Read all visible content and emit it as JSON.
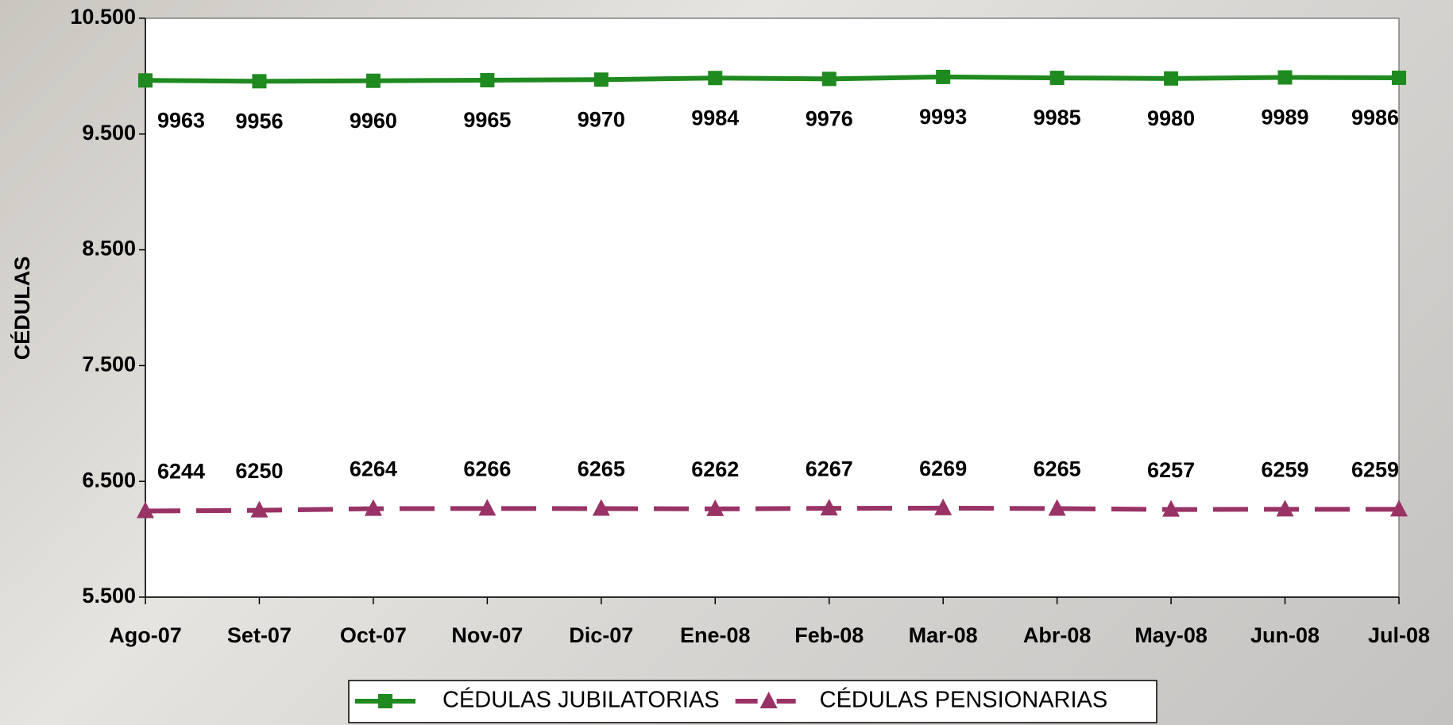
{
  "chart_data": {
    "type": "line",
    "ylabel": "CÉDULAS",
    "categories": [
      "Ago-07",
      "Set-07",
      "Oct-07",
      "Nov-07",
      "Dic-07",
      "Ene-08",
      "Feb-08",
      "Mar-08",
      "Abr-08",
      "May-08",
      "Jun-08",
      "Jul-08"
    ],
    "series": [
      {
        "name": "CÉDULAS JUBILATORIAS",
        "color": "#1f8a1f",
        "line_style": "solid",
        "marker": "square",
        "label_position": "below",
        "values": [
          9963,
          9956,
          9960,
          9965,
          9970,
          9984,
          9976,
          9993,
          9985,
          9980,
          9989,
          9986
        ]
      },
      {
        "name": "CÉDULAS PENSIONARIAS",
        "color": "#993366",
        "line_style": "dashed",
        "marker": "triangle",
        "label_position": "above",
        "values": [
          6244,
          6250,
          6264,
          6266,
          6265,
          6262,
          6267,
          6269,
          6265,
          6257,
          6259,
          6259
        ]
      }
    ],
    "ylim": [
      5500,
      10500
    ],
    "yticks": [
      {
        "value": 5500,
        "label": "5.500"
      },
      {
        "value": 6500,
        "label": "6.500"
      },
      {
        "value": 7500,
        "label": "7.500"
      },
      {
        "value": 8500,
        "label": "8.500"
      },
      {
        "value": 9500,
        "label": "9.500"
      },
      {
        "value": 10500,
        "label": "10.500"
      }
    ],
    "grid": false,
    "legend": "bottom"
  }
}
